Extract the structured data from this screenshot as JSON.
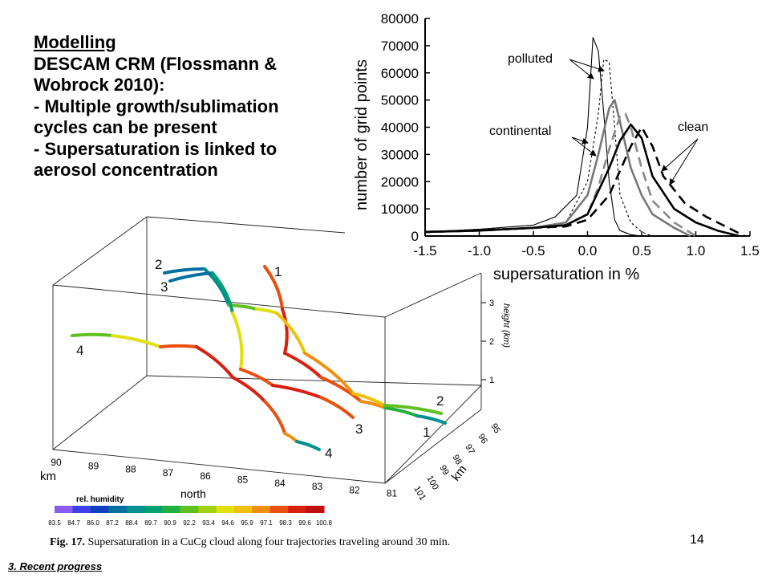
{
  "slide": {
    "title_lines": [
      "Modelling",
      "DESCAM CRM (Flossmann &",
      "Wobrock  2010):",
      "- Multiple growth/sublimation",
      "cycles can be present",
      "- Supersaturation is linked to",
      "aerosol concentration"
    ],
    "slide_number": "14",
    "footer": "3. Recent progress"
  },
  "figure": {
    "caption_label": "Fig. 17.",
    "caption_text": " Supersaturation in a CuCg cloud along four trajectories traveling around 30 min."
  },
  "chart_data": [
    {
      "type": "line",
      "xlabel": "supersaturation in %",
      "ylabel": "number of grid points",
      "xlim": [
        -1.5,
        1.5
      ],
      "ylim": [
        0,
        80000
      ],
      "x_ticks": [
        "-1.5",
        "-1.0",
        "-0.5",
        "0.0",
        "0.5",
        "1.0",
        "1.5"
      ],
      "y_ticks": [
        "0",
        "10000",
        "20000",
        "30000",
        "40000",
        "50000",
        "60000",
        "70000",
        "80000"
      ],
      "annotations": [
        "polluted",
        "continental",
        "clean"
      ],
      "series": [
        {
          "group": "polluted",
          "style": "thin-solid",
          "color": "#000000",
          "x": [
            -1.5,
            -1.0,
            -0.5,
            -0.3,
            -0.1,
            0.0,
            0.05,
            0.1,
            0.15,
            0.2,
            0.25,
            0.3,
            0.4,
            0.5
          ],
          "y": [
            1500,
            2500,
            4000,
            7000,
            15000,
            40000,
            73000,
            68000,
            45000,
            20000,
            6000,
            2000,
            500,
            0
          ]
        },
        {
          "group": "polluted",
          "style": "thin-dashed",
          "color": "#000000",
          "x": [
            -1.5,
            -1.0,
            -0.5,
            -0.2,
            0.0,
            0.1,
            0.15,
            0.2,
            0.25,
            0.3,
            0.4,
            0.5,
            0.6
          ],
          "y": [
            1500,
            2500,
            3000,
            5000,
            20000,
            45000,
            65000,
            64000,
            40000,
            15000,
            5000,
            1500,
            0
          ]
        },
        {
          "group": "continental",
          "style": "thick-solid",
          "color": "#777777",
          "x": [
            -1.5,
            -1.0,
            -0.5,
            -0.2,
            0.0,
            0.1,
            0.2,
            0.25,
            0.3,
            0.4,
            0.5,
            0.6,
            0.8,
            0.95
          ],
          "y": [
            1500,
            2000,
            3000,
            5000,
            15000,
            30000,
            47000,
            50000,
            42000,
            25000,
            15000,
            8000,
            3000,
            0
          ]
        },
        {
          "group": "continental",
          "style": "thick-dashed",
          "color": "#888888",
          "x": [
            -1.5,
            -1.0,
            -0.5,
            -0.2,
            0.0,
            0.1,
            0.2,
            0.3,
            0.35,
            0.4,
            0.5,
            0.6,
            0.8,
            1.0
          ],
          "y": [
            1500,
            2000,
            3000,
            4000,
            8000,
            18000,
            32000,
            44000,
            45000,
            40000,
            25000,
            13000,
            5000,
            0
          ]
        },
        {
          "group": "clean",
          "style": "thick-solid",
          "color": "#000000",
          "x": [
            -1.5,
            -1.0,
            -0.5,
            -0.2,
            0.0,
            0.2,
            0.3,
            0.4,
            0.5,
            0.6,
            0.8,
            1.0,
            1.2,
            1.4
          ],
          "y": [
            1500,
            2000,
            3000,
            4000,
            8000,
            25000,
            35000,
            41000,
            36000,
            22000,
            10000,
            5000,
            2000,
            0
          ]
        },
        {
          "group": "clean",
          "style": "thick-dashed",
          "color": "#000000",
          "x": [
            -1.5,
            -1.0,
            -0.5,
            -0.2,
            0.0,
            0.2,
            0.3,
            0.4,
            0.5,
            0.6,
            0.7,
            0.9,
            1.1,
            1.3,
            1.45
          ],
          "y": [
            1500,
            2000,
            3000,
            3500,
            6000,
            15000,
            24000,
            33000,
            40000,
            33000,
            22000,
            12000,
            7000,
            3000,
            0
          ]
        }
      ]
    },
    {
      "type": "trajectory-3d",
      "x_axis": {
        "label": "north",
        "unit": "km",
        "ticks": [
          "90",
          "89",
          "88",
          "87",
          "86",
          "85",
          "84",
          "83",
          "82",
          "81"
        ]
      },
      "y_axis": {
        "unit": "km",
        "ticks": [
          "95",
          "96",
          "97",
          "98",
          "99",
          "100",
          "101"
        ]
      },
      "z_axis": {
        "label": "height (km)",
        "ticks": [
          "1",
          "2",
          "3"
        ]
      },
      "trajectory_labels": [
        "1",
        "2",
        "3",
        "4",
        "2",
        "3",
        "1",
        "4"
      ],
      "colorbar": {
        "title": "rel. humidity",
        "ticks": [
          "83.5",
          "84.7",
          "86.0",
          "87.2",
          "88.4",
          "89.7",
          "90.9",
          "92.2",
          "93.4",
          "94.6",
          "95.9",
          "97.1",
          "98.3",
          "99.6",
          "100.8"
        ],
        "colors": [
          "#8a5cf0",
          "#4040e8",
          "#1040c0",
          "#0070a0",
          "#009090",
          "#00a070",
          "#20b040",
          "#60c020",
          "#a0d010",
          "#e0e010",
          "#f0c010",
          "#f09010",
          "#e85010",
          "#d82010",
          "#c01010"
        ]
      }
    }
  ]
}
